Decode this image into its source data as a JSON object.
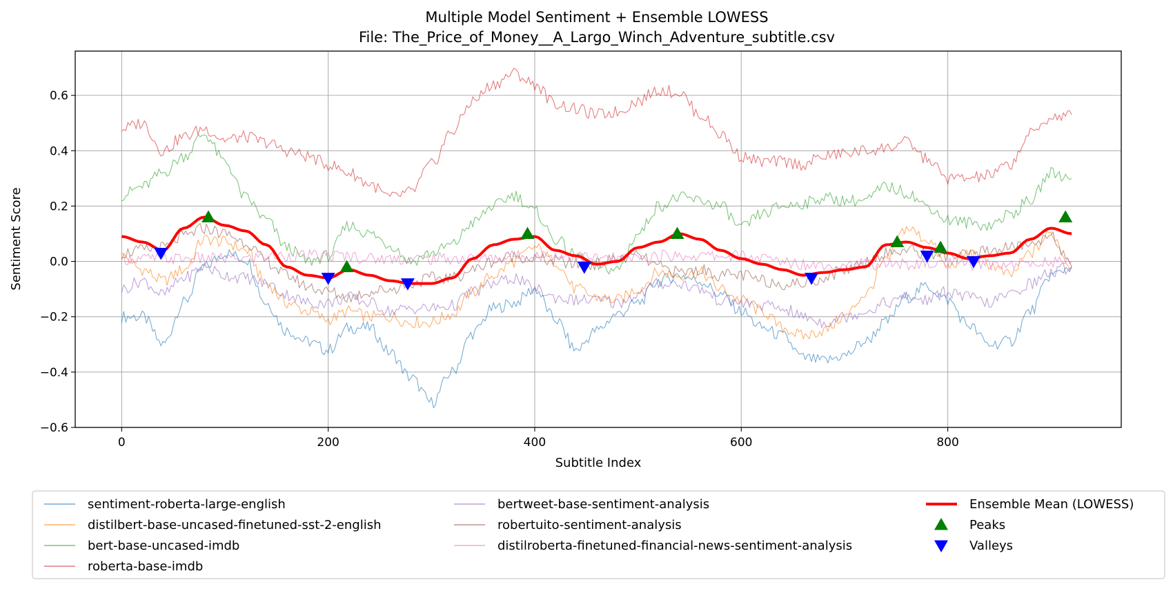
{
  "chart_data": {
    "type": "line",
    "title": "Multiple Model Sentiment + Ensemble LOWESS",
    "subtitle": "File: The_Price_of_Money__A_Largo_Winch_Adventure_subtitle.csv",
    "xlabel": "Subtitle Index",
    "ylabel": "Sentiment Score",
    "xlim": [
      -45,
      968
    ],
    "ylim": [
      -0.6,
      0.76
    ],
    "xticks": [
      0,
      200,
      400,
      600,
      800
    ],
    "yticks": [
      -0.6,
      -0.4,
      -0.2,
      0.0,
      0.2,
      0.4,
      0.6
    ],
    "grid": true,
    "legend_position": "below",
    "series": [
      {
        "name": "sentiment-roberta-large-english",
        "color": "#1f77b4",
        "x": [
          0,
          20,
          40,
          60,
          80,
          100,
          120,
          140,
          160,
          180,
          200,
          220,
          240,
          260,
          280,
          300,
          320,
          340,
          360,
          380,
          400,
          420,
          440,
          460,
          480,
          500,
          520,
          540,
          560,
          580,
          600,
          620,
          640,
          660,
          680,
          700,
          720,
          740,
          760,
          780,
          800,
          820,
          840,
          860,
          880,
          900,
          920
        ],
        "y": [
          -0.2,
          -0.2,
          -0.3,
          -0.15,
          -0.02,
          0.03,
          0.01,
          -0.15,
          -0.25,
          -0.29,
          -0.32,
          -0.24,
          -0.24,
          -0.33,
          -0.42,
          -0.51,
          -0.4,
          -0.26,
          -0.17,
          -0.15,
          -0.1,
          -0.21,
          -0.32,
          -0.25,
          -0.19,
          -0.15,
          -0.07,
          -0.05,
          -0.07,
          -0.12,
          -0.18,
          -0.24,
          -0.27,
          -0.35,
          -0.36,
          -0.34,
          -0.29,
          -0.22,
          -0.13,
          -0.09,
          -0.14,
          -0.23,
          -0.3,
          -0.29,
          -0.18,
          -0.05,
          -0.02
        ]
      },
      {
        "name": "distilbert-base-uncased-finetuned-sst-2-english",
        "color": "#ff7f0e",
        "x": [
          0,
          20,
          40,
          60,
          80,
          100,
          120,
          140,
          160,
          180,
          200,
          220,
          240,
          260,
          280,
          300,
          320,
          340,
          360,
          380,
          400,
          420,
          440,
          460,
          480,
          500,
          520,
          540,
          560,
          580,
          600,
          620,
          640,
          660,
          680,
          700,
          720,
          740,
          760,
          780,
          800,
          820,
          840,
          860,
          880,
          900,
          920
        ],
        "y": [
          0.02,
          -0.03,
          -0.07,
          -0.03,
          0.08,
          0.07,
          0.04,
          -0.08,
          -0.15,
          -0.18,
          -0.21,
          -0.18,
          -0.2,
          -0.2,
          -0.22,
          -0.22,
          -0.19,
          -0.11,
          -0.05,
          0.0,
          0.05,
          0.0,
          -0.1,
          -0.13,
          -0.14,
          -0.1,
          -0.04,
          -0.05,
          -0.04,
          -0.1,
          -0.14,
          -0.18,
          -0.24,
          -0.27,
          -0.25,
          -0.2,
          -0.12,
          0.0,
          0.12,
          0.08,
          -0.02,
          0.03,
          -0.01,
          -0.05,
          0.03,
          0.1,
          -0.02
        ]
      },
      {
        "name": "bert-base-uncased-imdb",
        "color": "#2ca02c",
        "x": [
          0,
          20,
          40,
          60,
          80,
          100,
          120,
          140,
          160,
          180,
          200,
          220,
          240,
          260,
          280,
          300,
          320,
          340,
          360,
          380,
          400,
          420,
          440,
          460,
          480,
          500,
          520,
          540,
          560,
          580,
          600,
          620,
          640,
          660,
          680,
          700,
          720,
          740,
          760,
          780,
          800,
          820,
          840,
          860,
          880,
          900,
          920
        ],
        "y": [
          0.24,
          0.27,
          0.32,
          0.38,
          0.46,
          0.36,
          0.23,
          0.15,
          0.05,
          0.0,
          0.02,
          0.13,
          0.1,
          0.06,
          0.0,
          0.03,
          0.06,
          0.14,
          0.2,
          0.24,
          0.18,
          0.08,
          0.02,
          -0.02,
          -0.03,
          0.1,
          0.2,
          0.23,
          0.22,
          0.2,
          0.12,
          0.17,
          0.2,
          0.21,
          0.23,
          0.22,
          0.22,
          0.27,
          0.25,
          0.2,
          0.15,
          0.14,
          0.13,
          0.17,
          0.22,
          0.32,
          0.3
        ]
      },
      {
        "name": "roberta-base-imdb",
        "color": "#d62728",
        "x": [
          0,
          20,
          40,
          60,
          80,
          100,
          120,
          140,
          160,
          180,
          200,
          220,
          240,
          260,
          280,
          300,
          320,
          340,
          360,
          380,
          400,
          420,
          440,
          460,
          480,
          500,
          520,
          540,
          560,
          580,
          600,
          620,
          640,
          660,
          680,
          700,
          720,
          740,
          760,
          780,
          800,
          820,
          840,
          860,
          880,
          900,
          920
        ],
        "y": [
          0.48,
          0.5,
          0.4,
          0.45,
          0.48,
          0.44,
          0.45,
          0.43,
          0.4,
          0.38,
          0.35,
          0.32,
          0.28,
          0.23,
          0.25,
          0.35,
          0.47,
          0.58,
          0.64,
          0.68,
          0.64,
          0.57,
          0.55,
          0.53,
          0.54,
          0.58,
          0.62,
          0.61,
          0.53,
          0.46,
          0.38,
          0.36,
          0.36,
          0.35,
          0.38,
          0.39,
          0.4,
          0.41,
          0.43,
          0.37,
          0.3,
          0.3,
          0.31,
          0.35,
          0.46,
          0.52,
          0.53
        ]
      },
      {
        "name": "bertweet-base-sentiment-analysis",
        "color": "#9467bd",
        "x": [
          0,
          20,
          40,
          60,
          80,
          100,
          120,
          140,
          160,
          180,
          200,
          220,
          240,
          260,
          280,
          300,
          320,
          340,
          360,
          380,
          400,
          420,
          440,
          460,
          480,
          500,
          520,
          540,
          560,
          580,
          600,
          620,
          640,
          660,
          680,
          700,
          720,
          740,
          760,
          780,
          800,
          820,
          840,
          860,
          880,
          900,
          920
        ],
        "y": [
          -0.1,
          -0.07,
          -0.12,
          -0.06,
          -0.02,
          -0.05,
          -0.06,
          -0.08,
          -0.12,
          -0.15,
          -0.15,
          -0.13,
          -0.15,
          -0.18,
          -0.17,
          -0.17,
          -0.16,
          -0.11,
          -0.08,
          -0.06,
          -0.1,
          -0.13,
          -0.14,
          -0.14,
          -0.15,
          -0.12,
          -0.08,
          -0.08,
          -0.1,
          -0.14,
          -0.15,
          -0.16,
          -0.17,
          -0.2,
          -0.22,
          -0.2,
          -0.18,
          -0.15,
          -0.13,
          -0.14,
          -0.11,
          -0.13,
          -0.15,
          -0.12,
          -0.08,
          -0.04,
          -0.02
        ]
      },
      {
        "name": "robertuito-sentiment-analysis",
        "color": "#8c564b",
        "x": [
          0,
          20,
          40,
          60,
          80,
          100,
          120,
          140,
          160,
          180,
          200,
          220,
          240,
          260,
          280,
          300,
          320,
          340,
          360,
          380,
          400,
          420,
          440,
          460,
          480,
          500,
          520,
          540,
          560,
          580,
          600,
          620,
          640,
          660,
          680,
          700,
          720,
          740,
          760,
          780,
          800,
          820,
          840,
          860,
          880,
          900,
          920
        ],
        "y": [
          0.03,
          0.04,
          0.05,
          0.09,
          0.12,
          0.1,
          0.07,
          0.0,
          -0.05,
          -0.09,
          -0.11,
          -0.13,
          -0.11,
          -0.1,
          -0.08,
          -0.06,
          -0.06,
          -0.03,
          0.0,
          0.02,
          0.01,
          0.0,
          -0.01,
          -0.01,
          0.01,
          0.02,
          -0.02,
          -0.04,
          -0.03,
          -0.05,
          -0.05,
          -0.07,
          -0.08,
          -0.08,
          -0.06,
          -0.03,
          0.0,
          0.03,
          0.04,
          0.03,
          0.02,
          0.02,
          0.04,
          0.05,
          0.06,
          0.1,
          -0.02
        ]
      },
      {
        "name": "distilroberta-finetuned-financial-news-sentiment-analysis",
        "color": "#e377c2",
        "x": [
          0,
          20,
          40,
          60,
          80,
          100,
          120,
          140,
          160,
          180,
          200,
          220,
          240,
          260,
          280,
          300,
          320,
          340,
          360,
          380,
          400,
          420,
          440,
          460,
          480,
          500,
          520,
          540,
          560,
          580,
          600,
          620,
          640,
          660,
          680,
          700,
          720,
          740,
          760,
          780,
          800,
          820,
          840,
          860,
          880,
          900,
          920
        ],
        "y": [
          0.01,
          0.01,
          0.01,
          0.01,
          0.01,
          0.01,
          0.01,
          0.02,
          0.02,
          0.02,
          0.02,
          0.02,
          0.01,
          0.01,
          0.01,
          0.01,
          0.01,
          0.01,
          0.01,
          0.02,
          0.02,
          0.02,
          0.02,
          0.01,
          0.01,
          0.01,
          0.02,
          0.02,
          0.02,
          0.02,
          0.02,
          0.01,
          0.0,
          -0.01,
          -0.01,
          -0.01,
          -0.01,
          -0.01,
          -0.01,
          -0.01,
          -0.01,
          -0.01,
          -0.01,
          -0.01,
          -0.01,
          0.0,
          0.0
        ]
      },
      {
        "name": "Ensemble Mean (LOWESS)",
        "color": "#ff0000",
        "x": [
          0,
          20,
          40,
          60,
          80,
          100,
          120,
          140,
          160,
          180,
          200,
          220,
          240,
          260,
          280,
          300,
          320,
          340,
          360,
          380,
          400,
          420,
          440,
          460,
          480,
          500,
          520,
          540,
          560,
          580,
          600,
          620,
          640,
          660,
          680,
          700,
          720,
          740,
          760,
          780,
          800,
          820,
          840,
          860,
          880,
          900,
          920
        ],
        "y": [
          0.09,
          0.07,
          0.04,
          0.12,
          0.16,
          0.13,
          0.11,
          0.06,
          -0.02,
          -0.05,
          -0.06,
          -0.03,
          -0.05,
          -0.07,
          -0.08,
          -0.08,
          -0.06,
          0.01,
          0.06,
          0.08,
          0.09,
          0.04,
          0.02,
          -0.01,
          0.0,
          0.05,
          0.07,
          0.1,
          0.08,
          0.04,
          0.01,
          -0.01,
          -0.03,
          -0.05,
          -0.04,
          -0.03,
          -0.02,
          0.06,
          0.07,
          0.05,
          0.03,
          0.01,
          0.02,
          0.03,
          0.08,
          0.12,
          0.1
        ]
      }
    ],
    "peaks": {
      "name": "Peaks",
      "color": "#008000",
      "x": [
        84,
        218,
        393,
        538,
        751,
        793,
        914
      ],
      "y": [
        0.16,
        -0.02,
        0.1,
        0.1,
        0.07,
        0.05,
        0.16
      ]
    },
    "valleys": {
      "name": "Valleys",
      "color": "#0000ff",
      "x": [
        38,
        200,
        277,
        448,
        668,
        780,
        825
      ],
      "y": [
        0.03,
        -0.06,
        -0.08,
        -0.02,
        -0.06,
        0.02,
        0.0
      ]
    }
  }
}
